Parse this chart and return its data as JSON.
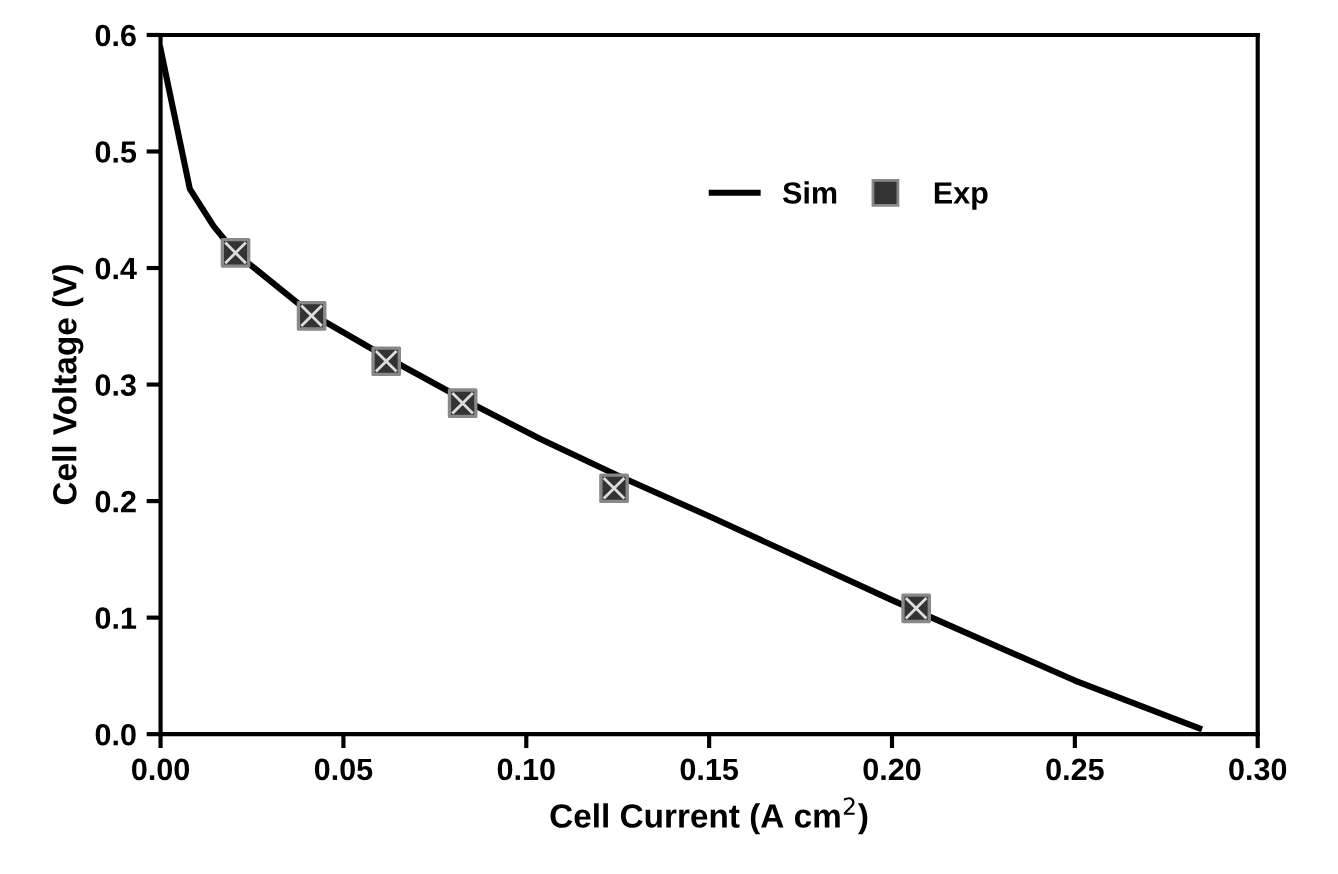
{
  "chart_data": {
    "type": "line",
    "xlabel": "Cell Current (A cm$^{2}$)",
    "ylabel": "Cell Voltage (V)",
    "xlim": [
      0,
      0.3
    ],
    "ylim": [
      0,
      0.6
    ],
    "xticks": [
      {
        "value": 0,
        "label": "0.00"
      },
      {
        "value": 0.05,
        "label": "0.05"
      },
      {
        "value": 0.1,
        "label": "0.10"
      },
      {
        "value": 0.15,
        "label": "0.15"
      },
      {
        "value": 0.2,
        "label": "0.20"
      },
      {
        "value": 0.25,
        "label": "0.25"
      },
      {
        "value": 0.3,
        "label": "0.30"
      }
    ],
    "yticks": [
      {
        "value": 0,
        "label": "0.0"
      },
      {
        "value": 0.1,
        "label": "0.1"
      },
      {
        "value": 0.2,
        "label": "0.2"
      },
      {
        "value": 0.3,
        "label": "0.3"
      },
      {
        "value": 0.4,
        "label": "0.4"
      },
      {
        "value": 0.5,
        "label": "0.5"
      },
      {
        "value": 0.6,
        "label": "0.6"
      }
    ],
    "grid": false,
    "legend": "top right",
    "series": [
      {
        "name": "Sim",
        "color": "#000000",
        "marker": "none",
        "line_style": "solid",
        "x": [
          0,
          0.008,
          0.0145,
          0.0205,
          0.041,
          0.062,
          0.083,
          0.104,
          0.125,
          0.15,
          0.2,
          0.25,
          0.284
        ],
        "values": [
          0.588,
          0.468,
          0.436,
          0.413,
          0.361,
          0.323,
          0.287,
          0.253,
          0.222,
          0.187,
          0.115,
          0.046,
          0.005
        ]
      },
      {
        "name": "Exp",
        "type": "scatter",
        "color": "#333333",
        "marker": "square",
        "x": [
          0.0205,
          0.0413,
          0.0617,
          0.0826,
          0.124,
          0.2066
        ],
        "values": [
          0.413,
          0.359,
          0.32,
          0.284,
          0.211,
          0.108
        ]
      }
    ]
  }
}
